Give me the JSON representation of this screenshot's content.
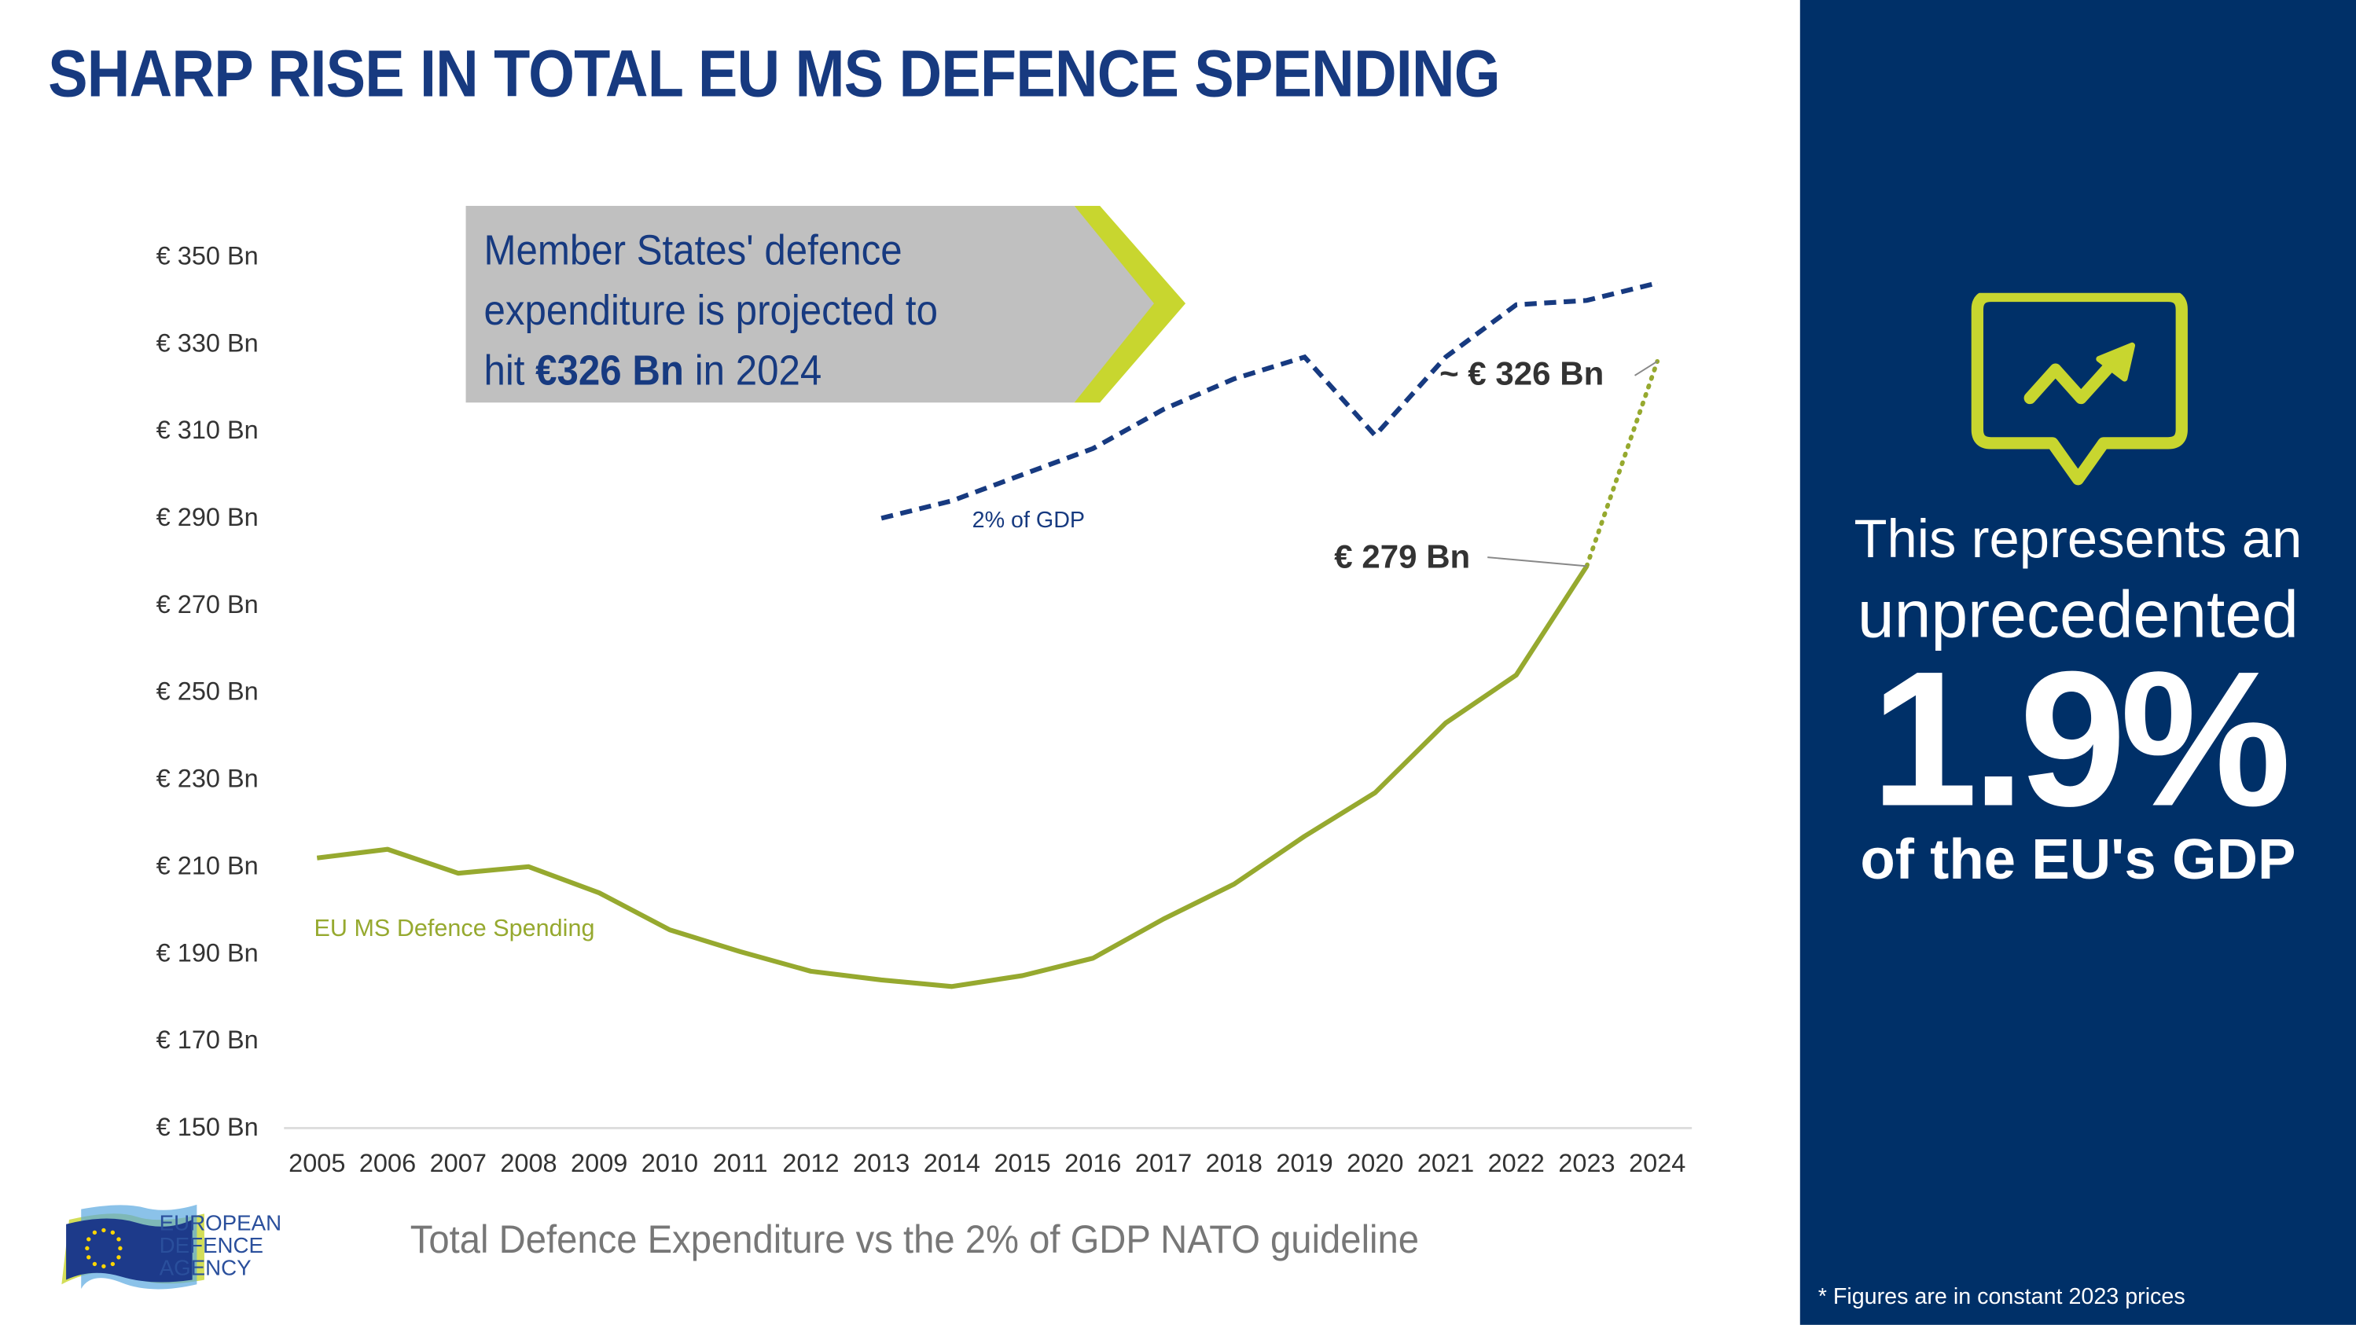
{
  "title": "SHARP RISE IN TOTAL EU MS DEFENCE SPENDING",
  "callout": {
    "line1": "Member States' defence",
    "line2": "expenditure is projected to",
    "line3_pre": "hit ",
    "line3_bold": "€326 Bn",
    "line3_post": " in 2024"
  },
  "colors": {
    "navy": "#173a80",
    "panel": "#003068",
    "green": "#96a92f",
    "lime": "#c8d62f",
    "callout_bg": "#c0c0c0"
  },
  "chart_data": {
    "type": "line",
    "title": "Total Defence Expenditure vs the 2% of GDP NATO guideline",
    "xlabel": "",
    "ylabel": "",
    "x": [
      "2005",
      "2006",
      "2007",
      "2008",
      "2009",
      "2010",
      "2011",
      "2012",
      "2013",
      "2014",
      "2015",
      "2016",
      "2017",
      "2018",
      "2019",
      "2020",
      "2021",
      "2022",
      "2023",
      "2024"
    ],
    "ylim": [
      150,
      350
    ],
    "yticks": [
      "€ 150 Bn",
      "€ 170 Bn",
      "€ 190 Bn",
      "€ 210 Bn",
      "€ 230 Bn",
      "€ 250 Bn",
      "€ 270 Bn",
      "€ 290 Bn",
      "€ 310 Bn",
      "€ 330 Bn",
      "€ 350 Bn"
    ],
    "grid": false,
    "series": [
      {
        "name": "EU MS Defence Spending",
        "style": "solid, 2024 projected dotted",
        "values": [
          212,
          214,
          208.5,
          210,
          204,
          195.5,
          190.5,
          186,
          184,
          182.5,
          185,
          189,
          198,
          206,
          217,
          227,
          243,
          254,
          279,
          326
        ]
      },
      {
        "name": "2% of GDP",
        "style": "dashed",
        "values": [
          null,
          null,
          null,
          null,
          null,
          null,
          null,
          null,
          290,
          294,
          300,
          306,
          315,
          322,
          327,
          309,
          327,
          339,
          340,
          344
        ]
      }
    ],
    "annotations": [
      "€ 279 Bn",
      "~ € 326 Bn"
    ]
  },
  "panel": {
    "line1": "This represents an",
    "line2": "unprecedented",
    "big": "1.9%",
    "line3": "of the EU's GDP",
    "footnote": "* Figures are in constant 2023 prices",
    "icon": "chart-trend-up-speech-bubble-icon"
  },
  "logo": {
    "line1": "EUROPEAN",
    "line2": "DEFENCE",
    "line3": "AGENCY"
  }
}
